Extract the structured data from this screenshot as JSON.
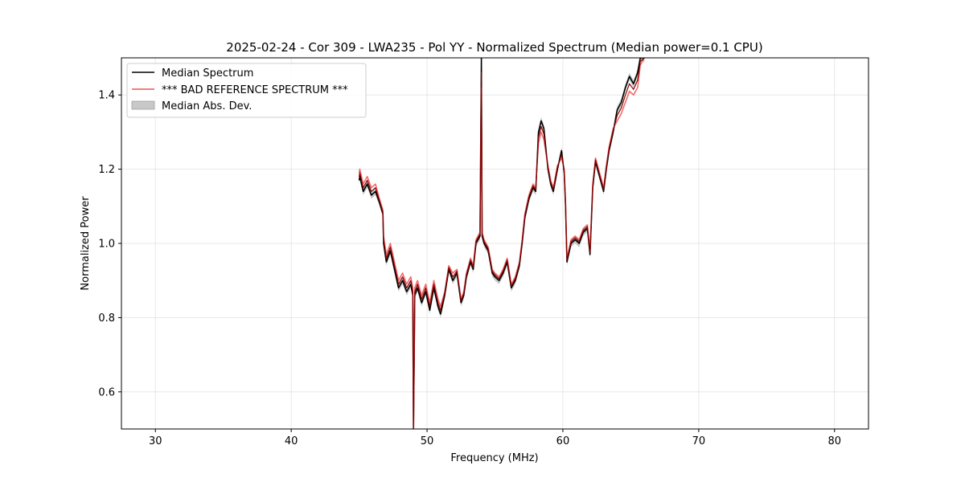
{
  "chart_data": {
    "type": "line",
    "title": "2025-02-24 - Cor 309 - LWA235 - Pol YY - Normalized Spectrum (Median power=0.1 CPU)",
    "xlabel": "Frequency (MHz)",
    "ylabel": "Normalized Power",
    "xlim": [
      27.5,
      82.5
    ],
    "ylim": [
      0.5,
      1.5
    ],
    "xticks": [
      30,
      40,
      50,
      60,
      70,
      80
    ],
    "xtick_labels": [
      "30",
      "40",
      "50",
      "60",
      "70",
      "80"
    ],
    "yticks": [
      0.6,
      0.8,
      1.0,
      1.2,
      1.4
    ],
    "ytick_labels": [
      "0.6",
      "0.8",
      "1.0",
      "1.2",
      "1.4"
    ],
    "grid": true,
    "legend_position": "top-left",
    "legend": [
      {
        "label": "Median Spectrum",
        "kind": "line",
        "color": "#000000"
      },
      {
        "label": "*** BAD REFERENCE SPECTRUM ***",
        "kind": "line",
        "color": "#f05050"
      },
      {
        "label": "Median Abs. Dev.",
        "kind": "band",
        "color": "#c8c8c8"
      }
    ],
    "series": [
      {
        "name": "Median Spectrum",
        "color": "#000000",
        "x": [
          45.0,
          45.05,
          45.3,
          45.6,
          45.9,
          46.2,
          46.5,
          46.75,
          46.8,
          47.0,
          47.3,
          47.6,
          47.9,
          48.2,
          48.5,
          48.8,
          48.95,
          49.0,
          49.1,
          49.3,
          49.6,
          49.9,
          50.2,
          50.5,
          50.8,
          51.0,
          51.3,
          51.6,
          51.9,
          52.2,
          52.5,
          52.7,
          52.9,
          53.2,
          53.4,
          53.6,
          53.9,
          54.0,
          54.05,
          54.2,
          54.5,
          54.8,
          55.0,
          55.3,
          55.6,
          55.9,
          56.2,
          56.5,
          56.8,
          57.0,
          57.2,
          57.5,
          57.8,
          58.0,
          58.2,
          58.4,
          58.6,
          58.9,
          59.1,
          59.3,
          59.6,
          59.9,
          60.1,
          60.2,
          60.3,
          60.6,
          60.9,
          61.2,
          61.5,
          61.8,
          62.0,
          62.2,
          62.4,
          62.7,
          63.0,
          63.2,
          63.4,
          63.7,
          64.0,
          64.3,
          64.6,
          64.9,
          65.2,
          65.5,
          65.7,
          66.0
        ],
        "y": [
          1.17,
          1.18,
          1.14,
          1.16,
          1.13,
          1.14,
          1.11,
          1.08,
          1.0,
          0.95,
          0.98,
          0.93,
          0.88,
          0.9,
          0.87,
          0.89,
          0.86,
          0.5,
          0.86,
          0.88,
          0.84,
          0.87,
          0.82,
          0.88,
          0.83,
          0.81,
          0.86,
          0.93,
          0.9,
          0.92,
          0.84,
          0.86,
          0.91,
          0.95,
          0.93,
          1.0,
          1.02,
          1.5,
          1.02,
          1.0,
          0.98,
          0.92,
          0.91,
          0.9,
          0.92,
          0.95,
          0.88,
          0.9,
          0.94,
          1.0,
          1.07,
          1.12,
          1.15,
          1.14,
          1.3,
          1.33,
          1.31,
          1.2,
          1.16,
          1.14,
          1.2,
          1.25,
          1.19,
          1.1,
          0.95,
          1.0,
          1.01,
          1.0,
          1.03,
          1.04,
          0.97,
          1.15,
          1.22,
          1.18,
          1.14,
          1.2,
          1.25,
          1.3,
          1.36,
          1.38,
          1.42,
          1.45,
          1.43,
          1.46,
          1.5,
          1.5
        ]
      },
      {
        "name": "*** BAD REFERENCE SPECTRUM ***",
        "color": "#f05050",
        "x": [
          45.0,
          45.05,
          45.3,
          45.6,
          45.9,
          46.2,
          46.5,
          46.75,
          46.8,
          47.0,
          47.3,
          47.6,
          47.9,
          48.2,
          48.5,
          48.8,
          48.95,
          49.0,
          49.1,
          49.3,
          49.6,
          49.9,
          50.2,
          50.5,
          50.8,
          51.0,
          51.3,
          51.6,
          51.9,
          52.2,
          52.5,
          52.7,
          52.9,
          53.2,
          53.4,
          53.6,
          53.9,
          54.0,
          54.05,
          54.2,
          54.5,
          54.8,
          55.0,
          55.3,
          55.6,
          55.9,
          56.2,
          56.5,
          56.8,
          57.0,
          57.2,
          57.5,
          57.8,
          58.0,
          58.2,
          58.4,
          58.6,
          58.9,
          59.1,
          59.3,
          59.6,
          59.9,
          60.1,
          60.2,
          60.3,
          60.6,
          60.9,
          61.2,
          61.5,
          61.8,
          62.0,
          62.2,
          62.4,
          62.7,
          63.0,
          63.2,
          63.4,
          63.7,
          64.0,
          64.3,
          64.6,
          64.9,
          65.2,
          65.5,
          65.7,
          66.0
        ],
        "y": [
          1.19,
          1.2,
          1.16,
          1.18,
          1.15,
          1.16,
          1.12,
          1.09,
          1.02,
          0.97,
          1.0,
          0.95,
          0.9,
          0.92,
          0.89,
          0.91,
          0.88,
          0.5,
          0.88,
          0.9,
          0.86,
          0.89,
          0.84,
          0.9,
          0.85,
          0.83,
          0.87,
          0.94,
          0.92,
          0.93,
          0.85,
          0.87,
          0.92,
          0.96,
          0.94,
          1.01,
          1.03,
          1.42,
          1.03,
          1.01,
          0.99,
          0.93,
          0.92,
          0.91,
          0.93,
          0.96,
          0.89,
          0.91,
          0.95,
          1.01,
          1.08,
          1.13,
          1.16,
          1.15,
          1.27,
          1.3,
          1.28,
          1.21,
          1.17,
          1.15,
          1.21,
          1.23,
          1.2,
          1.11,
          0.96,
          1.01,
          1.02,
          1.01,
          1.04,
          1.05,
          0.98,
          1.16,
          1.23,
          1.19,
          1.15,
          1.21,
          1.26,
          1.31,
          1.33,
          1.35,
          1.38,
          1.41,
          1.4,
          1.42,
          1.48,
          1.5
        ]
      }
    ],
    "mad_band_halfwidth": 0.01
  }
}
